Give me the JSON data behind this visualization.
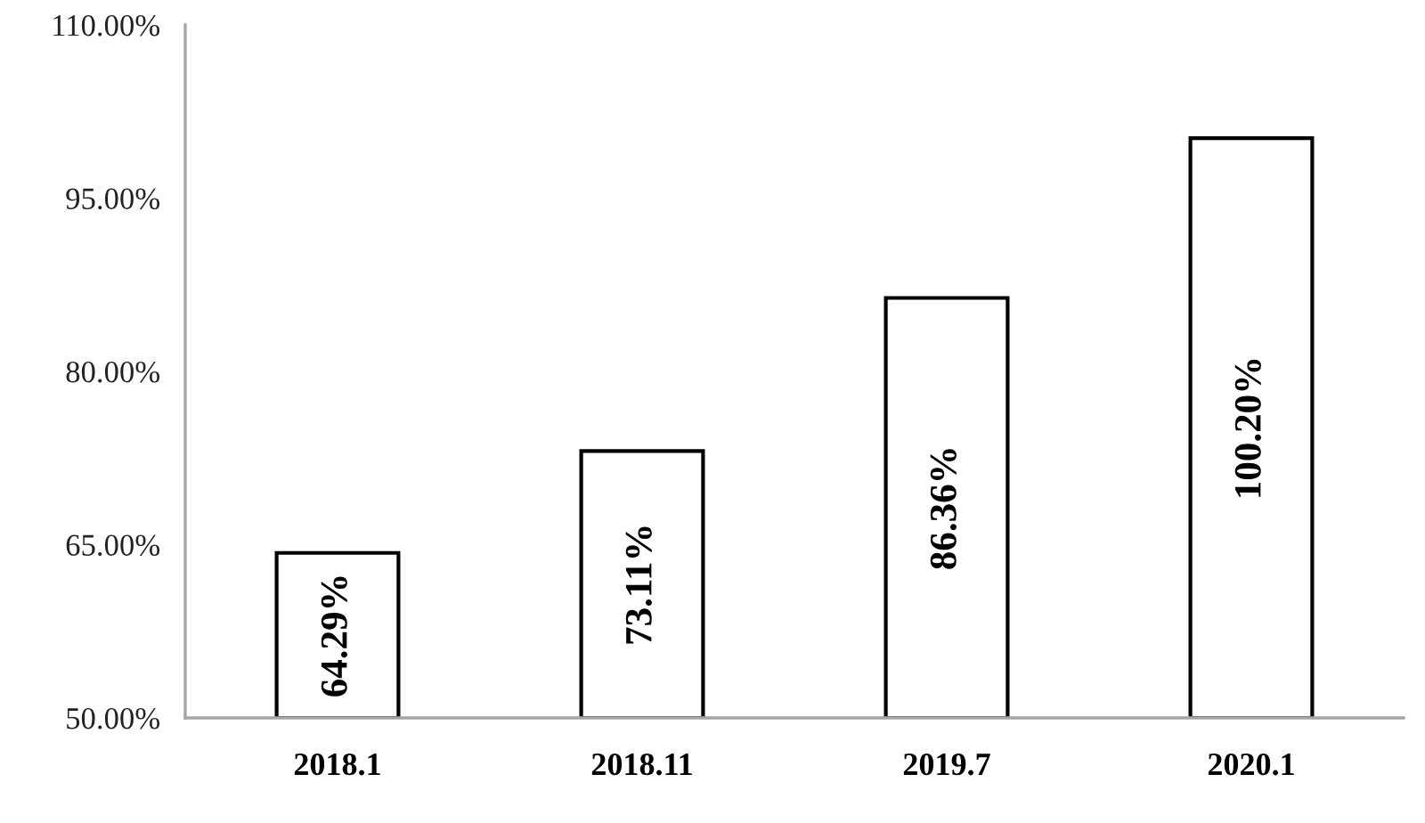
{
  "chart_data": {
    "type": "bar",
    "categories": [
      "2018.1",
      "2018.11",
      "2019.7",
      "2020.1"
    ],
    "values": [
      64.29,
      73.11,
      86.36,
      100.2
    ],
    "value_labels": [
      "64.29%",
      "73.11%",
      "86.36%",
      "100.20%"
    ],
    "color": "#ffffff",
    "ylim": [
      50,
      110
    ],
    "yticks": [
      {
        "value": 50,
        "label": "50.00%"
      },
      {
        "value": 65,
        "label": "65.00%"
      },
      {
        "value": 80,
        "label": "80.00%"
      },
      {
        "value": 95,
        "label": "95.00%"
      },
      {
        "value": 110,
        "label": "110.00%"
      }
    ],
    "grid": false,
    "legend": false
  }
}
